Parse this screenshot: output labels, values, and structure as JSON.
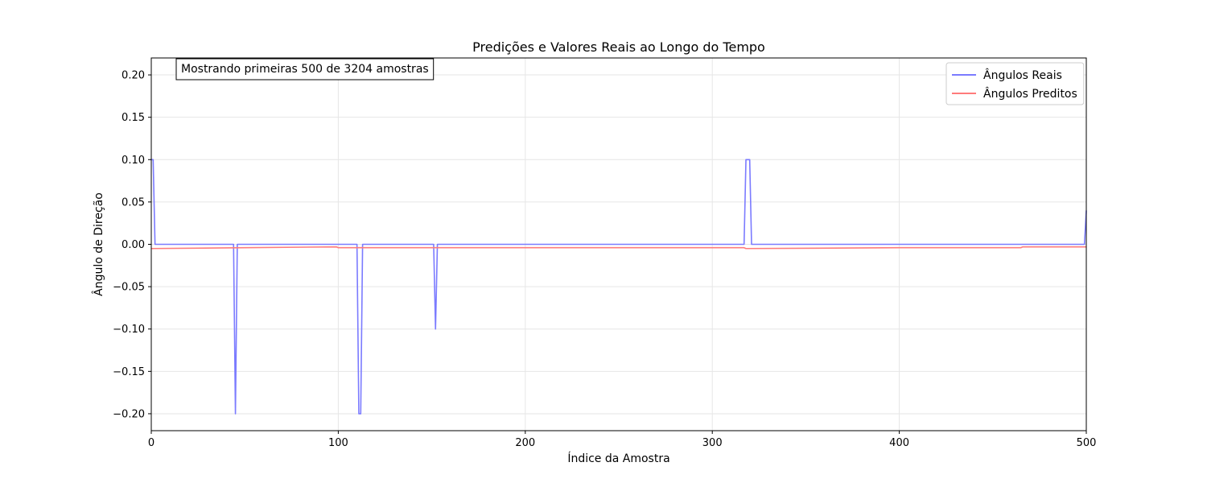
{
  "chart_data": {
    "type": "line",
    "title": "Predições e Valores Reais ao Longo do Tempo",
    "xlabel": "Índice da Amostra",
    "ylabel": "Ângulo de Direção",
    "xlim": [
      0,
      500
    ],
    "ylim": [
      -0.22,
      0.22
    ],
    "xticks": [
      0,
      100,
      200,
      300,
      400,
      500
    ],
    "yticks": [
      -0.2,
      -0.15,
      -0.1,
      -0.05,
      0.0,
      0.05,
      0.1,
      0.15,
      0.2
    ],
    "grid": true,
    "legend_position": "top-right",
    "annotation": "Mostrando primeiras 500 de 3204 amostras",
    "series": [
      {
        "name": "Ângulos Reais",
        "color": "#7b7bff",
        "points": [
          [
            0,
            0.1
          ],
          [
            1,
            0.1
          ],
          [
            2,
            0.0
          ],
          [
            44,
            0.0
          ],
          [
            45,
            -0.2
          ],
          [
            46,
            0.0
          ],
          [
            110,
            0.0
          ],
          [
            111,
            -0.2
          ],
          [
            112,
            -0.2
          ],
          [
            113,
            0.0
          ],
          [
            151,
            0.0
          ],
          [
            152,
            -0.1
          ],
          [
            153,
            0.0
          ],
          [
            317,
            0.0
          ],
          [
            318,
            0.1
          ],
          [
            320,
            0.1
          ],
          [
            321,
            0.0
          ],
          [
            499,
            0.0
          ],
          [
            500,
            0.04
          ]
        ]
      },
      {
        "name": "Ângulos Preditos",
        "color": "#ff7b7b",
        "points": [
          [
            0,
            -0.005
          ],
          [
            50,
            -0.004
          ],
          [
            99,
            -0.003
          ],
          [
            100,
            -0.004
          ],
          [
            200,
            -0.004
          ],
          [
            317,
            -0.004
          ],
          [
            318,
            -0.005
          ],
          [
            400,
            -0.004
          ],
          [
            465,
            -0.004
          ],
          [
            466,
            -0.003
          ],
          [
            500,
            -0.003
          ]
        ]
      }
    ]
  }
}
